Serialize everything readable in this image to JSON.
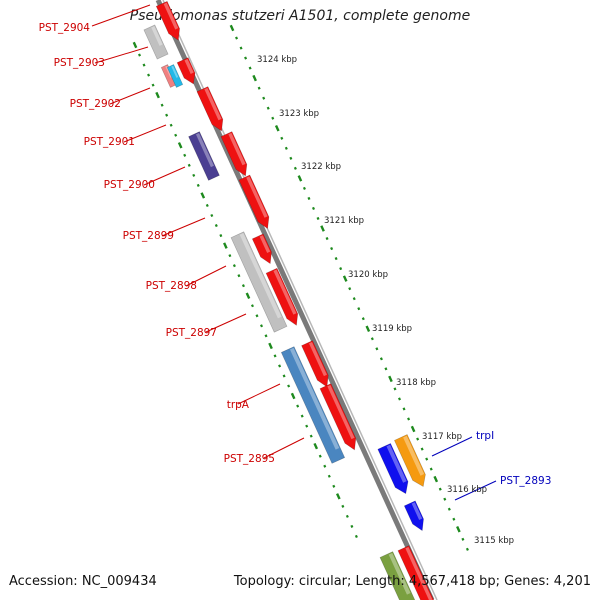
{
  "title": "Pseudomonas stutzeri A1501, complete genome",
  "accession": "Accession: NC_009434",
  "topology": "Topology: circular; Length: 4,567,418 bp; Genes: 4,201",
  "colors": {
    "backbone": "#808080",
    "tick": "#1e8a1e",
    "red": "#ee1111",
    "pink": "#f08080",
    "cyan": "#22b8e8",
    "navy": "#4b3f92",
    "gray": "#c0c0c0",
    "steel": "#4a86c0",
    "blue": "#1010ee",
    "orange": "#f59a10",
    "olive": "#7aa040",
    "label_red": "#cc0000",
    "label_blue": "#0000bb"
  },
  "scale_labels": [
    "3124 kbp",
    "3123 kbp",
    "3122 kbp",
    "3121 kbp",
    "3120 kbp",
    "3119 kbp",
    "3118 kbp",
    "3117 kbp",
    "3116 kbp",
    "3115 kbp"
  ],
  "gene_labels": [
    {
      "text": "PST_2904",
      "color": "label_red"
    },
    {
      "text": "PST_2903",
      "color": "label_red"
    },
    {
      "text": "PST_2902",
      "color": "label_red"
    },
    {
      "text": "PST_2901",
      "color": "label_red"
    },
    {
      "text": "PST_2900",
      "color": "label_red"
    },
    {
      "text": "PST_2899",
      "color": "label_red"
    },
    {
      "text": "PST_2898",
      "color": "label_red"
    },
    {
      "text": "PST_2897",
      "color": "label_red"
    },
    {
      "text": "trpA",
      "color": "label_red"
    },
    {
      "text": "PST_2895",
      "color": "label_red"
    },
    {
      "text": "trpI",
      "color": "label_blue"
    },
    {
      "text": "PST_2893",
      "color": "label_blue"
    }
  ]
}
